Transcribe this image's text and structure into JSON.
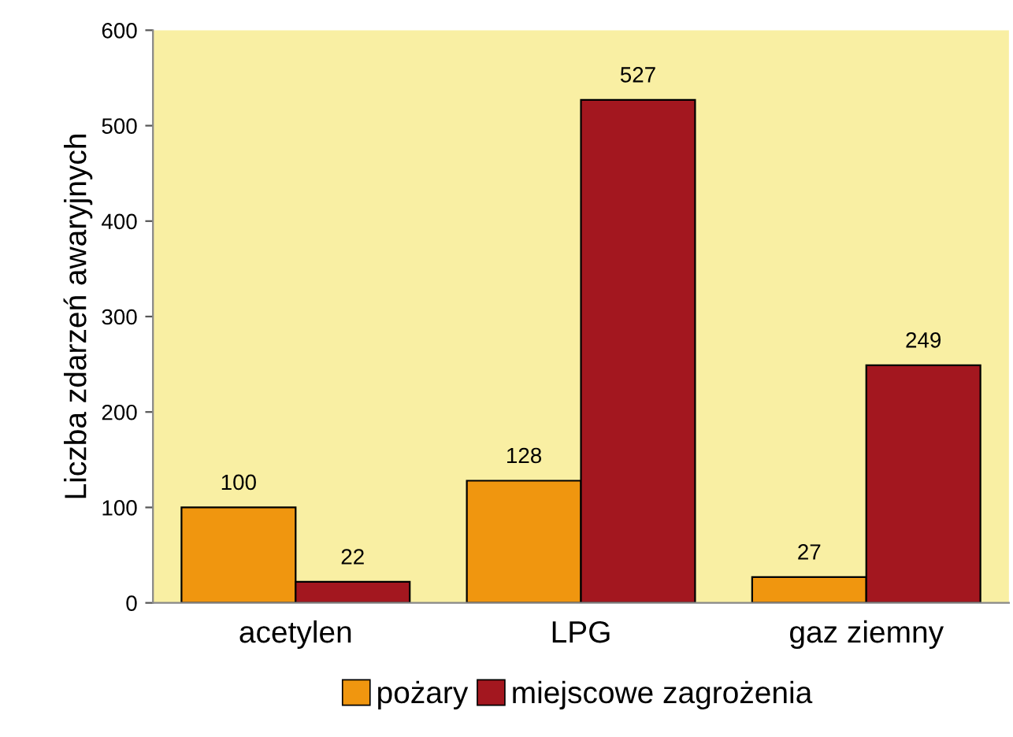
{
  "chart_data": {
    "type": "bar",
    "ylabel": "Liczba zdarzeń awaryjnych",
    "categories": [
      "acetylen",
      "LPG",
      "gaz ziemny"
    ],
    "series": [
      {
        "name": "pożary",
        "color": "#f0960f",
        "values": [
          100,
          128,
          27
        ]
      },
      {
        "name": "miejscowe zagrożenia",
        "color": "#a3171f",
        "values": [
          22,
          527,
          249
        ]
      }
    ],
    "ylim": [
      0,
      600
    ],
    "yticks": [
      0,
      100,
      200,
      300,
      400,
      500,
      600
    ],
    "data_labels": true,
    "grid": false,
    "legend": "bottom"
  }
}
